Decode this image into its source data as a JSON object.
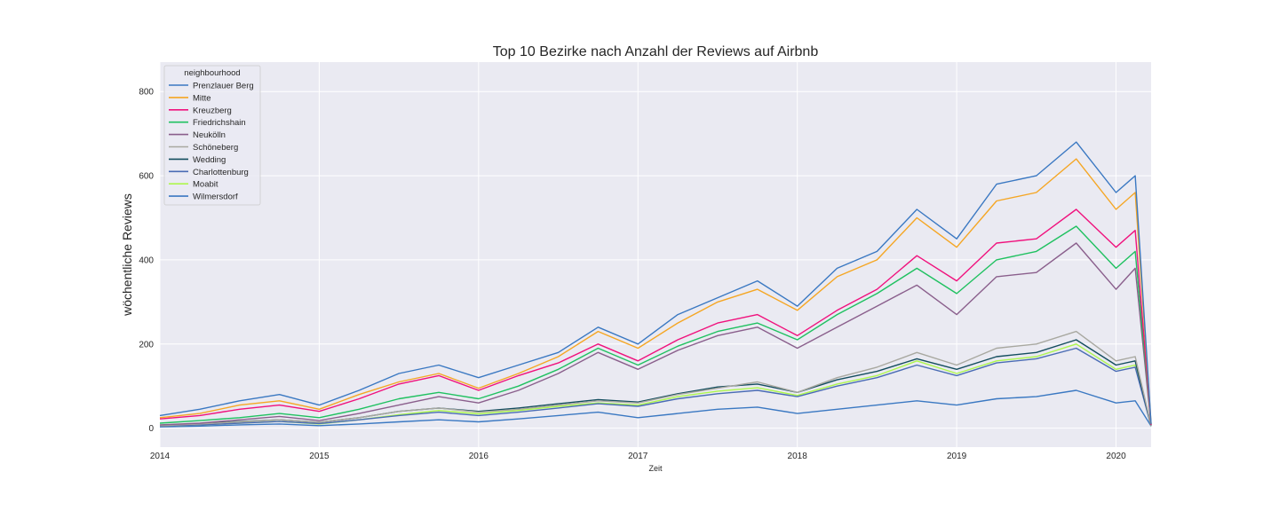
{
  "chart_data": {
    "type": "line",
    "title": "Top 10 Bezirke nach Anzahl der Reviews auf Airbnb",
    "xlabel": "Zeit",
    "ylabel": "wöchentliche Reviews",
    "x_ticks": [
      "2014",
      "2015",
      "2016",
      "2017",
      "2018",
      "2019",
      "2020"
    ],
    "y_ticks": [
      0,
      200,
      400,
      600,
      800
    ],
    "xlim": [
      2014.0,
      2020.22
    ],
    "ylim": [
      -45,
      870
    ],
    "grid": true,
    "legend": {
      "title": "neighbourhood",
      "position": "top-left"
    },
    "x": [
      2014.0,
      2014.25,
      2014.5,
      2014.75,
      2015.0,
      2015.25,
      2015.5,
      2015.75,
      2016.0,
      2016.25,
      2016.5,
      2016.75,
      2017.0,
      2017.25,
      2017.5,
      2017.75,
      2018.0,
      2018.25,
      2018.5,
      2018.75,
      2019.0,
      2019.25,
      2019.5,
      2019.75,
      2020.0,
      2020.12,
      2020.22
    ],
    "series": [
      {
        "name": "Prenzlauer Berg",
        "color": "#3a78c2",
        "values": [
          30,
          45,
          65,
          80,
          55,
          90,
          130,
          150,
          120,
          150,
          180,
          240,
          200,
          270,
          310,
          350,
          290,
          380,
          420,
          520,
          450,
          580,
          600,
          680,
          560,
          600,
          10
        ]
      },
      {
        "name": "Mitte",
        "color": "#f5a623",
        "values": [
          25,
          35,
          55,
          65,
          45,
          80,
          110,
          130,
          95,
          130,
          170,
          230,
          190,
          250,
          300,
          330,
          280,
          360,
          400,
          500,
          430,
          540,
          560,
          640,
          520,
          560,
          10
        ]
      },
      {
        "name": "Kreuzberg",
        "color": "#f0117d",
        "values": [
          22,
          30,
          45,
          55,
          40,
          70,
          105,
          125,
          90,
          125,
          155,
          200,
          160,
          210,
          250,
          270,
          220,
          280,
          330,
          410,
          350,
          440,
          450,
          520,
          430,
          470,
          8
        ]
      },
      {
        "name": "Friedrichshain",
        "color": "#1fc160",
        "values": [
          12,
          18,
          25,
          35,
          25,
          45,
          70,
          85,
          70,
          100,
          140,
          190,
          150,
          195,
          230,
          250,
          210,
          270,
          320,
          380,
          320,
          400,
          420,
          480,
          380,
          420,
          8
        ]
      },
      {
        "name": "Neukölln",
        "color": "#8a5f8c",
        "values": [
          8,
          12,
          20,
          28,
          18,
          35,
          55,
          75,
          60,
          90,
          130,
          180,
          140,
          185,
          220,
          240,
          190,
          240,
          290,
          340,
          270,
          360,
          370,
          440,
          330,
          380,
          8
        ]
      },
      {
        "name": "Schöneberg",
        "color": "#a8a8a0",
        "values": [
          6,
          10,
          15,
          20,
          14,
          25,
          40,
          48,
          38,
          45,
          55,
          65,
          60,
          80,
          95,
          110,
          85,
          120,
          145,
          180,
          150,
          190,
          200,
          230,
          160,
          170,
          6
        ]
      },
      {
        "name": "Wedding",
        "color": "#144d5e",
        "values": [
          7,
          11,
          16,
          20,
          14,
          25,
          40,
          48,
          40,
          48,
          58,
          68,
          62,
          82,
          98,
          105,
          85,
          115,
          135,
          165,
          140,
          170,
          180,
          210,
          150,
          160,
          6
        ]
      },
      {
        "name": "Charlottenburg",
        "color": "#4a6cb4",
        "values": [
          5,
          8,
          12,
          16,
          11,
          20,
          30,
          38,
          30,
          38,
          48,
          58,
          52,
          70,
          82,
          90,
          75,
          100,
          120,
          150,
          125,
          155,
          165,
          190,
          135,
          145,
          5
        ]
      },
      {
        "name": "Moabit",
        "color": "#adf74d",
        "values": [
          5,
          8,
          12,
          16,
          10,
          20,
          32,
          42,
          34,
          42,
          52,
          60,
          55,
          75,
          88,
          96,
          78,
          105,
          125,
          160,
          130,
          160,
          170,
          200,
          140,
          150,
          5
        ]
      },
      {
        "name": "Wilmersdorf",
        "color": "#3a78c2",
        "values": [
          3,
          5,
          8,
          10,
          6,
          10,
          15,
          20,
          15,
          22,
          30,
          38,
          25,
          35,
          45,
          50,
          35,
          45,
          55,
          65,
          55,
          70,
          75,
          90,
          60,
          65,
          5
        ]
      }
    ]
  }
}
